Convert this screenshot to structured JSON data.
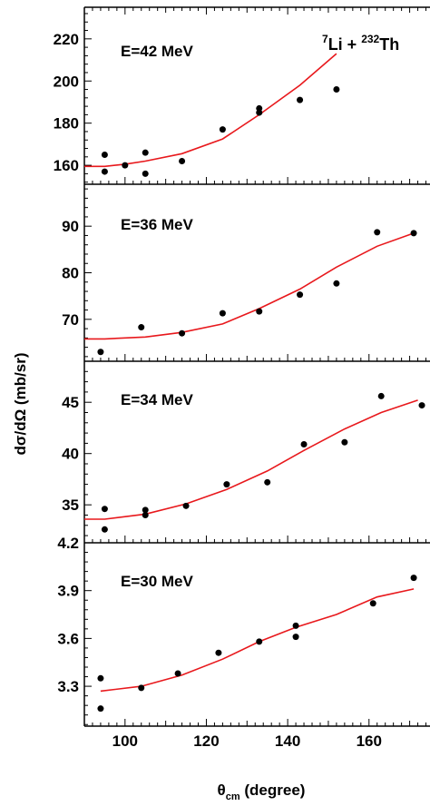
{
  "reaction": {
    "pre_super": "7",
    "pre": "Li + ",
    "target_super": "232",
    "target": "Th"
  },
  "y_axis_title": "dσ/dΩ (mb/sr)",
  "x_axis_title": {
    "main": "θ",
    "sub": "cm",
    "rest": " (degree)"
  },
  "colors": {
    "fit": "#e8181c",
    "data": "#000000",
    "axis": "#000000"
  },
  "chart_data": [
    {
      "type": "scatter",
      "label": "E=42 MeV",
      "xlim": [
        90,
        175
      ],
      "ylim": [
        151,
        235
      ],
      "yticks": [
        160,
        180,
        200,
        220
      ],
      "points": [
        [
          95,
          157
        ],
        [
          95,
          165
        ],
        [
          100,
          160
        ],
        [
          105,
          156
        ],
        [
          105,
          166
        ],
        [
          114,
          162
        ],
        [
          124,
          177
        ],
        [
          133,
          185
        ],
        [
          133,
          187
        ],
        [
          143,
          191
        ],
        [
          152,
          196
        ]
      ],
      "fit": [
        [
          90,
          159.5
        ],
        [
          95,
          159.5
        ],
        [
          100,
          160.5
        ],
        [
          105,
          162
        ],
        [
          114,
          165.5
        ],
        [
          124,
          172.5
        ],
        [
          133,
          184
        ],
        [
          143,
          198
        ],
        [
          152,
          213
        ]
      ]
    },
    {
      "type": "scatter",
      "label": "E=36 MeV",
      "xlim": [
        90,
        175
      ],
      "ylim": [
        61,
        99
      ],
      "yticks": [
        70,
        80,
        90
      ],
      "points": [
        [
          94,
          63
        ],
        [
          104,
          68.3
        ],
        [
          114,
          67
        ],
        [
          124,
          71.3
        ],
        [
          133,
          71.7
        ],
        [
          143,
          75.3
        ],
        [
          152,
          77.7
        ],
        [
          162,
          88.7
        ],
        [
          171,
          88.5
        ]
      ],
      "fit": [
        [
          90,
          65.8
        ],
        [
          95,
          65.8
        ],
        [
          105,
          66.2
        ],
        [
          114,
          67.2
        ],
        [
          124,
          69
        ],
        [
          133,
          72.3
        ],
        [
          143,
          76.5
        ],
        [
          152,
          81.2
        ],
        [
          162,
          85.7
        ],
        [
          171,
          88.5
        ]
      ]
    },
    {
      "type": "scatter",
      "label": "E=34 MeV",
      "xlim": [
        90,
        175
      ],
      "ylim": [
        31.3,
        49
      ],
      "yticks": [
        35,
        40,
        45
      ],
      "points": [
        [
          95,
          32.6
        ],
        [
          95,
          34.6
        ],
        [
          105,
          34
        ],
        [
          105,
          34.5
        ],
        [
          115,
          34.9
        ],
        [
          125,
          37
        ],
        [
          135,
          37.2
        ],
        [
          144,
          40.9
        ],
        [
          154,
          41.1
        ],
        [
          163,
          45.6
        ],
        [
          173,
          44.7
        ]
      ],
      "fit": [
        [
          90,
          33.6
        ],
        [
          95,
          33.6
        ],
        [
          105,
          34.1
        ],
        [
          115,
          35.1
        ],
        [
          125,
          36.5
        ],
        [
          135,
          38.3
        ],
        [
          144,
          40.3
        ],
        [
          154,
          42.4
        ],
        [
          163,
          44
        ],
        [
          172,
          45.2
        ]
      ]
    },
    {
      "type": "scatter",
      "label": "E=30 MeV",
      "xlim": [
        90,
        175
      ],
      "ylim": [
        3.05,
        4.2
      ],
      "yticks": [
        3.3,
        3.6,
        3.9,
        4.2
      ],
      "ytick_labels": [
        "3.3",
        "3.6",
        "3.9",
        "4.2"
      ],
      "xticks": [
        100,
        120,
        140,
        160
      ],
      "points": [
        [
          94,
          3.35
        ],
        [
          94,
          3.16
        ],
        [
          104,
          3.29
        ],
        [
          113,
          3.38
        ],
        [
          123,
          3.51
        ],
        [
          133,
          3.58
        ],
        [
          142,
          3.61
        ],
        [
          142,
          3.68
        ],
        [
          161,
          3.82
        ],
        [
          171,
          3.98
        ]
      ],
      "fit": [
        [
          94,
          3.27
        ],
        [
          104,
          3.3
        ],
        [
          114,
          3.37
        ],
        [
          124,
          3.47
        ],
        [
          133,
          3.58
        ],
        [
          142,
          3.67
        ],
        [
          152,
          3.75
        ],
        [
          162,
          3.86
        ],
        [
          171,
          3.91
        ]
      ]
    }
  ]
}
